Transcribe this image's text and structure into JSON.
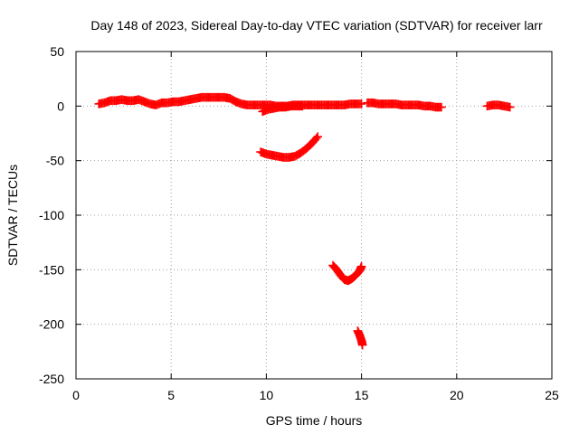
{
  "chart_data": {
    "type": "scatter",
    "title": "Day 148 of 2023, Sidereal Day-to-day VTEC variation (SDTVAR) for receiver larr",
    "xlabel": "GPS time / hours",
    "ylabel": "SDTVAR / TECUs",
    "xlim": [
      0,
      25
    ],
    "ylim": [
      -250,
      50
    ],
    "xticks": [
      0,
      5,
      10,
      15,
      20,
      25
    ],
    "yticks": [
      -250,
      -200,
      -150,
      -100,
      -50,
      0,
      50
    ],
    "grid": true,
    "marker": "plus",
    "color": "#ff0000",
    "series": [
      {
        "segments": [
          [
            [
              1.2,
              2
            ],
            [
              1.5,
              3
            ],
            [
              1.8,
              5
            ],
            [
              2.1,
              5
            ],
            [
              2.4,
              6
            ],
            [
              2.7,
              5
            ],
            [
              3.0,
              5
            ],
            [
              3.3,
              6
            ],
            [
              3.6,
              4
            ],
            [
              3.9,
              2
            ],
            [
              4.2,
              1
            ],
            [
              4.5,
              3
            ],
            [
              4.8,
              3
            ],
            [
              5.1,
              4
            ],
            [
              5.4,
              4
            ],
            [
              5.7,
              5
            ],
            [
              6.0,
              6
            ],
            [
              6.3,
              7
            ],
            [
              6.6,
              8
            ],
            [
              6.9,
              8
            ],
            [
              7.2,
              8
            ],
            [
              7.5,
              8
            ],
            [
              7.8,
              8
            ],
            [
              8.1,
              7
            ],
            [
              8.4,
              4
            ],
            [
              8.7,
              2
            ],
            [
              9.0,
              1
            ],
            [
              9.3,
              1
            ],
            [
              9.6,
              1
            ],
            [
              9.9,
              1
            ],
            [
              10.2,
              1
            ],
            [
              10.5,
              0
            ],
            [
              10.8,
              0
            ],
            [
              11.1,
              0
            ],
            [
              11.4,
              1
            ],
            [
              11.7,
              1
            ],
            [
              12.0,
              1
            ],
            [
              12.3,
              1
            ],
            [
              12.6,
              1
            ],
            [
              12.9,
              1
            ],
            [
              13.2,
              1
            ],
            [
              13.5,
              1
            ],
            [
              13.8,
              1
            ],
            [
              14.1,
              1
            ],
            [
              14.4,
              2
            ],
            [
              14.7,
              2
            ],
            [
              15.0,
              2
            ]
          ],
          [
            [
              9.8,
              -5
            ],
            [
              10.1,
              -3
            ],
            [
              10.4,
              -2
            ],
            [
              10.7,
              -1
            ],
            [
              11.0,
              -1
            ],
            [
              11.3,
              0
            ],
            [
              11.6,
              0
            ],
            [
              11.9,
              0
            ]
          ],
          [
            [
              15.3,
              3
            ],
            [
              15.6,
              3
            ],
            [
              15.9,
              2
            ],
            [
              16.2,
              2
            ],
            [
              16.5,
              2
            ],
            [
              16.8,
              2
            ],
            [
              17.1,
              1
            ],
            [
              17.4,
              1
            ],
            [
              17.7,
              1
            ],
            [
              18.0,
              1
            ],
            [
              18.3,
              0
            ],
            [
              18.6,
              0
            ],
            [
              18.9,
              -1
            ],
            [
              19.2,
              -1
            ]
          ],
          [
            [
              21.6,
              0
            ],
            [
              21.9,
              1
            ],
            [
              22.2,
              1
            ],
            [
              22.5,
              0
            ],
            [
              22.8,
              -1
            ]
          ],
          [
            [
              9.7,
              -42
            ],
            [
              10.0,
              -44
            ],
            [
              10.3,
              -45
            ],
            [
              10.6,
              -46
            ],
            [
              10.9,
              -47
            ],
            [
              11.2,
              -47
            ],
            [
              11.5,
              -46
            ],
            [
              11.8,
              -43
            ],
            [
              12.1,
              -39
            ],
            [
              12.4,
              -34
            ],
            [
              12.7,
              -28
            ]
          ],
          [
            [
              13.5,
              -146
            ],
            [
              13.7,
              -150
            ],
            [
              13.9,
              -155
            ],
            [
              14.1,
              -159
            ],
            [
              14.3,
              -160
            ],
            [
              14.5,
              -158
            ],
            [
              14.7,
              -155
            ],
            [
              14.9,
              -151
            ],
            [
              15.0,
              -147
            ]
          ],
          [
            [
              14.8,
              -206
            ],
            [
              14.9,
              -210
            ],
            [
              15.0,
              -215
            ],
            [
              15.05,
              -219
            ]
          ]
        ]
      }
    ]
  }
}
